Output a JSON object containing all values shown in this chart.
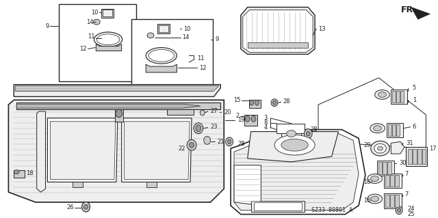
{
  "bg_color": "#ffffff",
  "fig_width": 6.4,
  "fig_height": 3.19,
  "diagram_code": "SZ33-80801 A",
  "dk": "#222222",
  "lt": "#aaaaaa",
  "gray": "#888888",
  "fill_light": "#eeeeee",
  "fill_mid": "#cccccc",
  "fill_dark": "#999999"
}
